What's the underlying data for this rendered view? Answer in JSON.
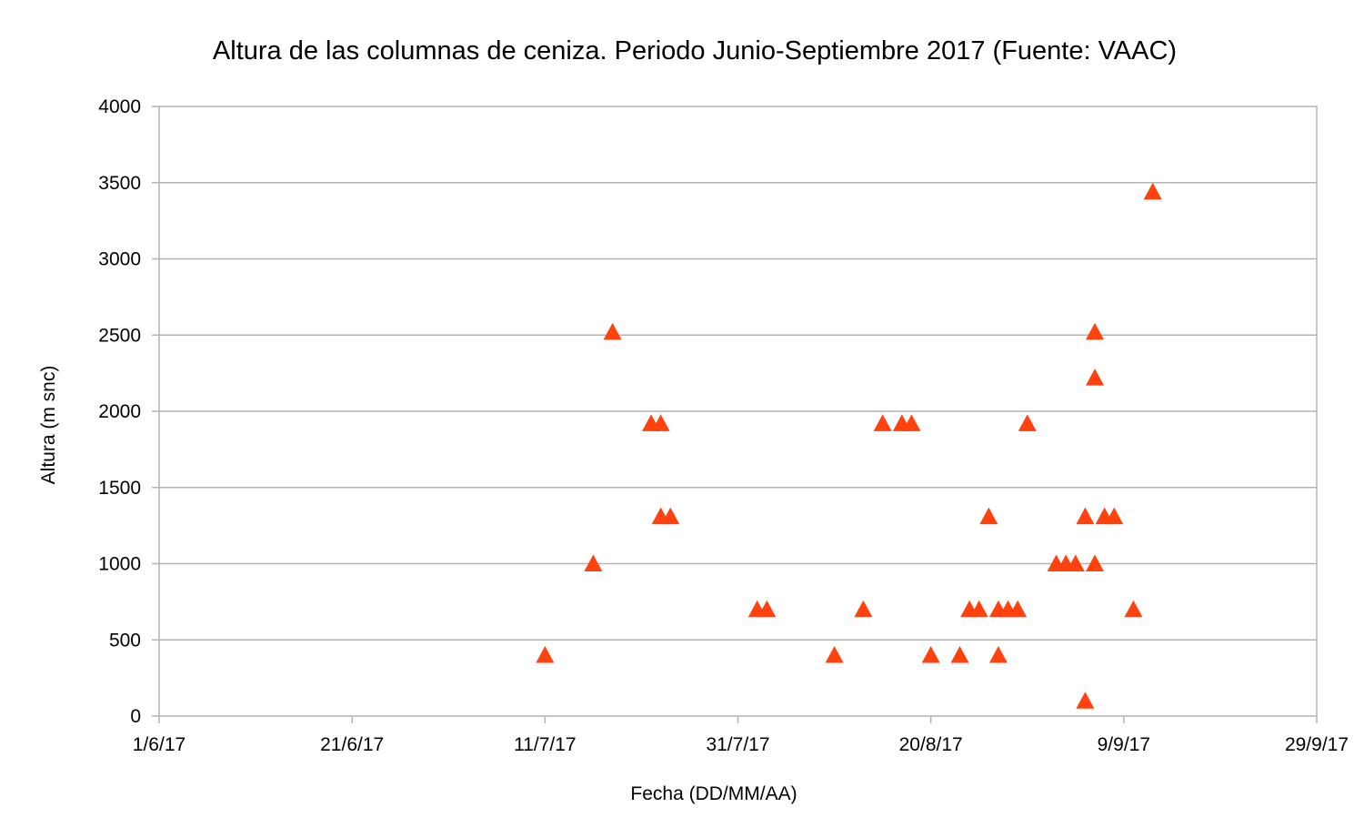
{
  "chart_data": {
    "type": "scatter",
    "title": "Altura de las columnas de ceniza. Periodo Junio-Septiembre 2017 (Fuente: VAAC)",
    "xlabel": "Fecha (DD/MM/AA)",
    "ylabel": "Altura (m snc)",
    "x_tick_labels": [
      "1/6/17",
      "21/6/17",
      "11/7/17",
      "31/7/17",
      "20/8/17",
      "9/9/17",
      "29/9/17"
    ],
    "x_range": [
      "2017-06-01",
      "2017-09-29"
    ],
    "y_ticks": [
      "0",
      "500",
      "1000",
      "1500",
      "2000",
      "2500",
      "3000",
      "3500",
      "4000"
    ],
    "ylim": [
      0,
      4000
    ],
    "grid": "horizontal",
    "legend": "none",
    "marker": "triangle",
    "color": "#ff420e",
    "series": [
      {
        "points": [
          {
            "x": "2017-07-11",
            "y": 400
          },
          {
            "x": "2017-07-16",
            "y": 1000
          },
          {
            "x": "2017-07-18",
            "y": 2520
          },
          {
            "x": "2017-07-22",
            "y": 1920
          },
          {
            "x": "2017-07-23",
            "y": 1920
          },
          {
            "x": "2017-07-23",
            "y": 1310
          },
          {
            "x": "2017-07-24",
            "y": 1310
          },
          {
            "x": "2017-08-02",
            "y": 700
          },
          {
            "x": "2017-08-03",
            "y": 700
          },
          {
            "x": "2017-08-10",
            "y": 400
          },
          {
            "x": "2017-08-13",
            "y": 700
          },
          {
            "x": "2017-08-15",
            "y": 1920
          },
          {
            "x": "2017-08-17",
            "y": 1920
          },
          {
            "x": "2017-08-18",
            "y": 1920
          },
          {
            "x": "2017-08-20",
            "y": 400
          },
          {
            "x": "2017-08-23",
            "y": 400
          },
          {
            "x": "2017-08-24",
            "y": 700
          },
          {
            "x": "2017-08-25",
            "y": 700
          },
          {
            "x": "2017-08-26",
            "y": 1310
          },
          {
            "x": "2017-08-27",
            "y": 700
          },
          {
            "x": "2017-08-27",
            "y": 400
          },
          {
            "x": "2017-08-28",
            "y": 700
          },
          {
            "x": "2017-08-29",
            "y": 700
          },
          {
            "x": "2017-08-30",
            "y": 1920
          },
          {
            "x": "2017-09-02",
            "y": 1000
          },
          {
            "x": "2017-09-03",
            "y": 1000
          },
          {
            "x": "2017-09-04",
            "y": 1000
          },
          {
            "x": "2017-09-05",
            "y": 100
          },
          {
            "x": "2017-09-05",
            "y": 1310
          },
          {
            "x": "2017-09-06",
            "y": 1000
          },
          {
            "x": "2017-09-06",
            "y": 2220
          },
          {
            "x": "2017-09-06",
            "y": 2520
          },
          {
            "x": "2017-09-07",
            "y": 1310
          },
          {
            "x": "2017-09-08",
            "y": 1310
          },
          {
            "x": "2017-09-10",
            "y": 700
          },
          {
            "x": "2017-09-12",
            "y": 3440
          }
        ]
      }
    ]
  }
}
